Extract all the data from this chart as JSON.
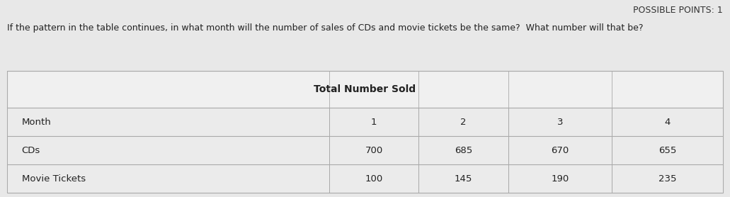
{
  "possible_points_text": "POSSIBLE POINTS: 1",
  "question_text": "If the pattern in the table continues, in what month will the number of sales of CDs and movie tickets be the same?  What number will that be?",
  "table_title": "Total Number Sold",
  "row_labels": [
    "Month",
    "CDs",
    "Movie Tickets"
  ],
  "col_labels": [
    "1",
    "2",
    "3",
    "4"
  ],
  "cd_values": [
    "700",
    "685",
    "670",
    "655"
  ],
  "movie_values": [
    "100",
    "145",
    "190",
    "235"
  ],
  "bg_color": "#e8e8e8",
  "table_bg": "#f0f0f0",
  "cell_bg": "#ebebeb",
  "border_color": "#aaaaaa",
  "text_color": "#222222",
  "possible_points_color": "#333333"
}
